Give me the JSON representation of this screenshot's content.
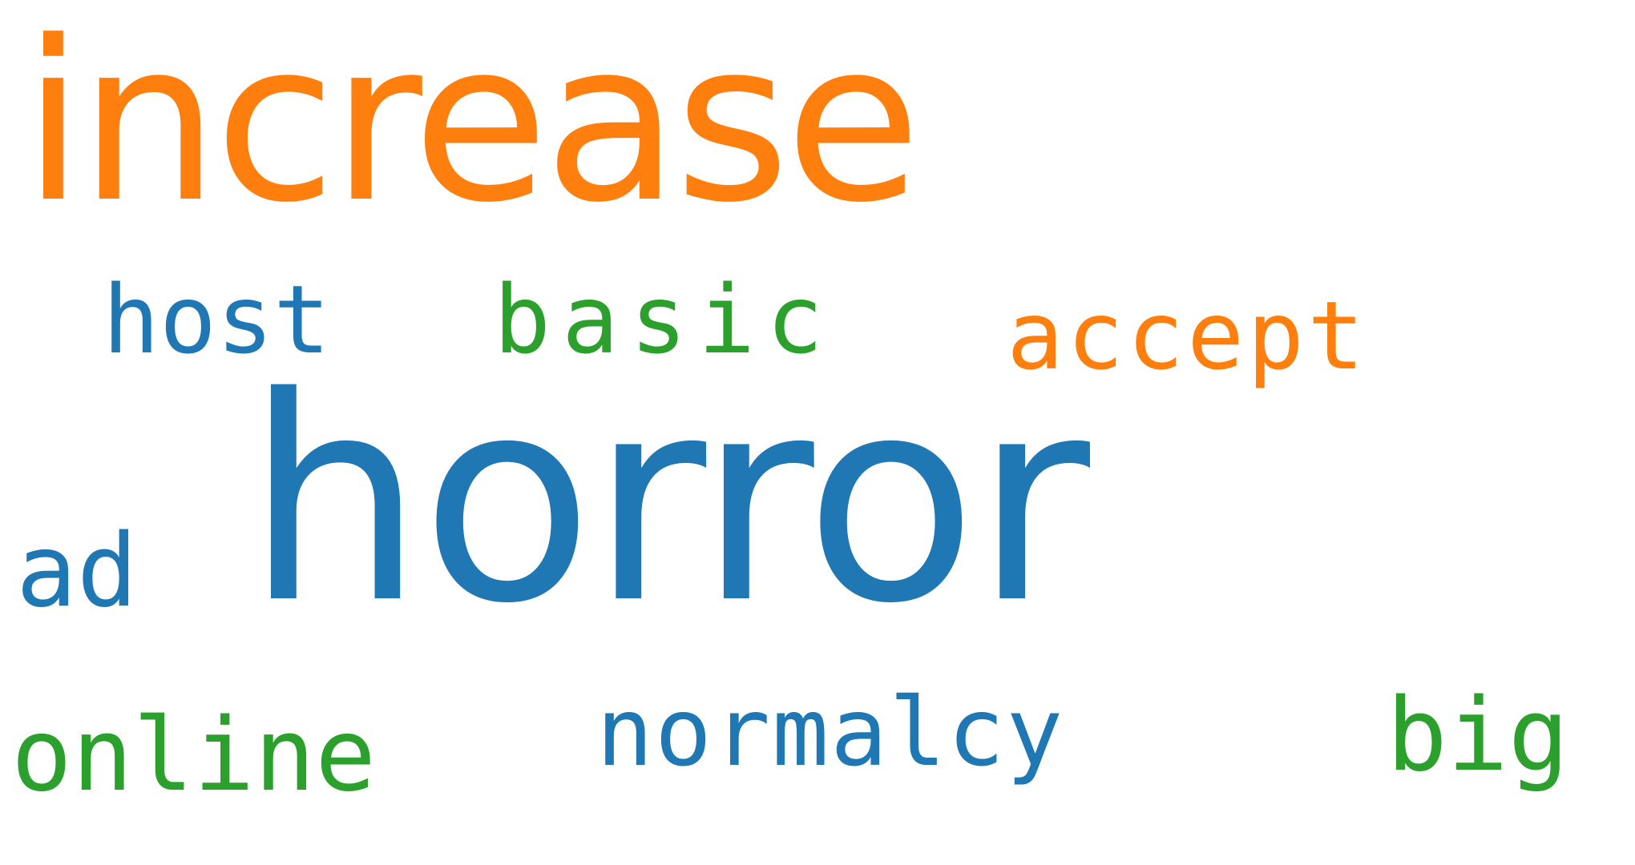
{
  "words": {
    "increase": {
      "text": "increase",
      "color": "#ff7f0e"
    },
    "host": {
      "text": "host",
      "color": "#1f77b4"
    },
    "basic": {
      "text": "basic",
      "color": "#2ca02c"
    },
    "accept": {
      "text": "accept",
      "color": "#ff7f0e"
    },
    "ad": {
      "text": "ad",
      "color": "#1f77b4"
    },
    "horror": {
      "text": "horror",
      "color": "#1f77b4"
    },
    "online": {
      "text": "online",
      "color": "#2ca02c"
    },
    "normalcy": {
      "text": "normalcy",
      "color": "#1f77b4"
    },
    "big": {
      "text": "big",
      "color": "#2ca02c"
    }
  },
  "palette": {
    "orange": "#ff7f0e",
    "blue": "#1f77b4",
    "green": "#2ca02c",
    "background": "#ffffff"
  }
}
